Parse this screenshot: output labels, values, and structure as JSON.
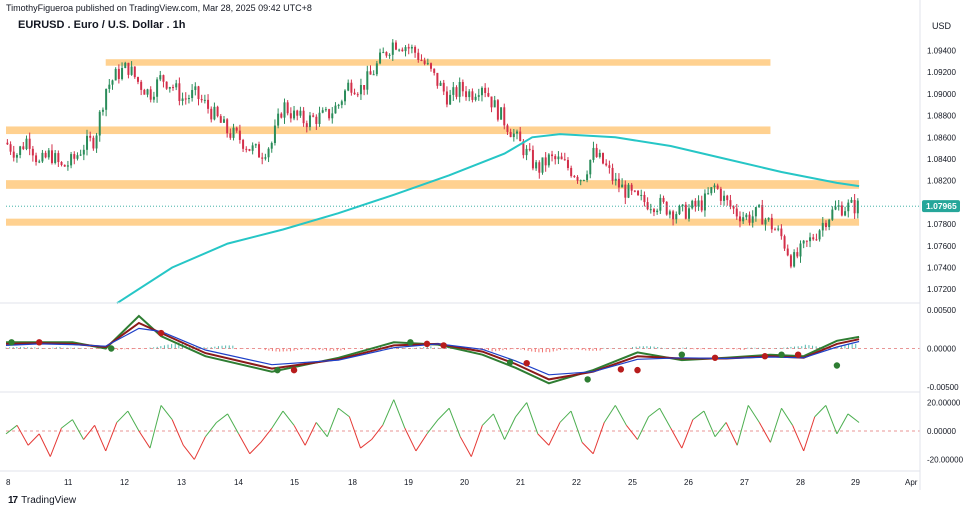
{
  "header": {
    "publish_line": "TimothyFigueroa published on TradingView.com, Mar 28, 2025 09:42 UTC+8",
    "symbol_line": "EURUSD . Euro / U.S. Dollar . 1h",
    "currency": "USD"
  },
  "footer": {
    "logo_text": "17",
    "brand": "TradingView"
  },
  "chart_data": [
    {
      "type": "candlestick",
      "title": "EURUSD . Euro / U.S. Dollar . 1h",
      "ylim": [
        1.071,
        1.097
      ],
      "y_ticks": [
        "1.09400",
        "1.09200",
        "1.09000",
        "1.08800",
        "1.08600",
        "1.08400",
        "1.08200",
        "1.07800",
        "1.07600",
        "1.07400",
        "1.07200"
      ],
      "last_price": "1.07965",
      "x_ticks": [
        "8",
        "11",
        "12",
        "13",
        "14",
        "15",
        "18",
        "19",
        "20",
        "21",
        "22",
        "25",
        "26",
        "27",
        "28",
        "29",
        "Apr"
      ],
      "close_path": [
        [
          0,
          1.0855
        ],
        [
          4,
          1.0845
        ],
        [
          8,
          1.086
        ],
        [
          12,
          1.0835
        ],
        [
          16,
          1.0845
        ],
        [
          20,
          1.0832
        ],
        [
          24,
          1.0838
        ],
        [
          28,
          1.0852
        ],
        [
          32,
          1.0858
        ],
        [
          36,
          1.0905
        ],
        [
          40,
          1.0918
        ],
        [
          44,
          1.0925
        ],
        [
          48,
          1.091
        ],
        [
          52,
          1.09
        ],
        [
          56,
          1.0915
        ],
        [
          60,
          1.0908
        ],
        [
          64,
          1.0895
        ],
        [
          68,
          1.09
        ],
        [
          72,
          1.089
        ],
        [
          76,
          1.0878
        ],
        [
          80,
          1.0865
        ],
        [
          84,
          1.086
        ],
        [
          88,
          1.085
        ],
        [
          92,
          1.0845
        ],
        [
          96,
          1.0855
        ],
        [
          100,
          1.089
        ],
        [
          104,
          1.088
        ],
        [
          108,
          1.0875
        ],
        [
          112,
          1.0878
        ],
        [
          116,
          1.088
        ],
        [
          120,
          1.089
        ],
        [
          124,
          1.091
        ],
        [
          128,
          1.0905
        ],
        [
          132,
          1.0918
        ],
        [
          136,
          1.0935
        ],
        [
          140,
          1.0948
        ],
        [
          144,
          1.0945
        ],
        [
          148,
          1.0938
        ],
        [
          152,
          1.0925
        ],
        [
          156,
          1.091
        ],
        [
          160,
          1.0895
        ],
        [
          164,
          1.0905
        ],
        [
          168,
          1.09
        ],
        [
          172,
          1.091
        ],
        [
          176,
          1.089
        ],
        [
          180,
          1.0875
        ],
        [
          184,
          1.086
        ],
        [
          188,
          1.0845
        ],
        [
          192,
          1.083
        ],
        [
          196,
          1.084
        ],
        [
          200,
          1.0838
        ],
        [
          204,
          1.083
        ],
        [
          208,
          1.0822
        ],
        [
          212,
          1.0845
        ],
        [
          216,
          1.0835
        ],
        [
          220,
          1.0818
        ],
        [
          224,
          1.081
        ],
        [
          228,
          1.0802
        ],
        [
          232,
          1.08
        ],
        [
          236,
          1.0798
        ],
        [
          240,
          1.0793
        ],
        [
          244,
          1.079
        ],
        [
          248,
          1.0795
        ],
        [
          252,
          1.08
        ],
        [
          256,
          1.0815
        ],
        [
          260,
          1.08
        ],
        [
          264,
          1.079
        ],
        [
          268,
          1.0786
        ],
        [
          272,
          1.079
        ],
        [
          276,
          1.078
        ],
        [
          280,
          1.0768
        ],
        [
          284,
          1.0745
        ],
        [
          288,
          1.0758
        ],
        [
          292,
          1.077
        ],
        [
          296,
          1.0785
        ],
        [
          300,
          1.0795
        ],
        [
          304,
          1.0796
        ],
        [
          308,
          1.07965
        ]
      ],
      "ma_path": [
        [
          40,
          1.0707
        ],
        [
          60,
          1.074
        ],
        [
          80,
          1.0762
        ],
        [
          100,
          1.0775
        ],
        [
          120,
          1.079
        ],
        [
          140,
          1.0807
        ],
        [
          160,
          1.0825
        ],
        [
          180,
          1.0845
        ],
        [
          190,
          1.086
        ],
        [
          200,
          1.0863
        ],
        [
          220,
          1.086
        ],
        [
          240,
          1.0852
        ],
        [
          260,
          1.084
        ],
        [
          280,
          1.0828
        ],
        [
          300,
          1.0818
        ],
        [
          308,
          1.0815
        ]
      ],
      "zones": [
        {
          "y_top": 1.0932,
          "y_bottom": 1.0926,
          "x_start": 36,
          "x_end": 276
        },
        {
          "y_top": 1.087,
          "y_bottom": 1.0863,
          "x_start": 0,
          "x_end": 276
        },
        {
          "y_top": 1.08205,
          "y_bottom": 1.08125,
          "x_start": 0,
          "x_end": 308
        },
        {
          "y_top": 1.0785,
          "y_bottom": 1.07785,
          "x_start": 0,
          "x_end": 308
        }
      ]
    },
    {
      "type": "line",
      "panel": "oscillator",
      "y_ticks": [
        "0.00500",
        "0.00000",
        "-0.00500"
      ],
      "ylim": [
        -0.0055,
        0.0055
      ],
      "series": [
        {
          "color": "#2e7d32",
          "values": [
            [
              0,
              0.0008
            ],
            [
              12,
              0.0008
            ],
            [
              24,
              0.0008
            ],
            [
              36,
              0.0
            ],
            [
              48,
              0.0042
            ],
            [
              56,
              0.0016
            ],
            [
              72,
              -0.001
            ],
            [
              96,
              -0.003
            ],
            [
              120,
              -0.0012
            ],
            [
              140,
              0.0008
            ],
            [
              156,
              0.0005
            ],
            [
              172,
              -0.0008
            ],
            [
              184,
              -0.0025
            ],
            [
              196,
              -0.0045
            ],
            [
              212,
              -0.0028
            ],
            [
              228,
              -0.0005
            ],
            [
              244,
              -0.0015
            ],
            [
              260,
              -0.0012
            ],
            [
              276,
              -0.0008
            ],
            [
              288,
              -0.001
            ],
            [
              300,
              0.001
            ],
            [
              308,
              0.0015
            ]
          ]
        },
        {
          "color": "#8b1a1a",
          "values": [
            [
              0,
              0.0006
            ],
            [
              12,
              0.0007
            ],
            [
              24,
              0.0006
            ],
            [
              36,
              0.0002
            ],
            [
              48,
              0.0033
            ],
            [
              56,
              0.002
            ],
            [
              72,
              -0.0006
            ],
            [
              96,
              -0.0026
            ],
            [
              120,
              -0.0014
            ],
            [
              140,
              0.0004
            ],
            [
              156,
              0.0006
            ],
            [
              172,
              -0.0004
            ],
            [
              184,
              -0.002
            ],
            [
              196,
              -0.004
            ],
            [
              212,
              -0.003
            ],
            [
              228,
              -0.001
            ],
            [
              244,
              -0.0013
            ],
            [
              260,
              -0.0013
            ],
            [
              276,
              -0.001
            ],
            [
              288,
              -0.0012
            ],
            [
              300,
              0.0006
            ],
            [
              308,
              0.0012
            ]
          ]
        },
        {
          "color": "#1e40c8",
          "values": [
            [
              0,
              0.0004
            ],
            [
              12,
              0.0006
            ],
            [
              24,
              0.0005
            ],
            [
              36,
              0.0003
            ],
            [
              48,
              0.0026
            ],
            [
              56,
              0.0022
            ],
            [
              72,
              -0.0002
            ],
            [
              96,
              -0.0021
            ],
            [
              120,
              -0.0015
            ],
            [
              140,
              0.0001
            ],
            [
              156,
              0.0006
            ],
            [
              172,
              -0.0001
            ],
            [
              184,
              -0.0016
            ],
            [
              196,
              -0.0034
            ],
            [
              212,
              -0.003
            ],
            [
              228,
              -0.0014
            ],
            [
              244,
              -0.0012
            ],
            [
              260,
              -0.0013
            ],
            [
              276,
              -0.0011
            ],
            [
              288,
              -0.0012
            ],
            [
              300,
              0.0002
            ],
            [
              308,
              0.0009
            ]
          ]
        }
      ],
      "histogram": [
        0.0002,
        0.0003,
        0.0001,
        -0.0002,
        -0.0001,
        0.0006,
        0.0008,
        0.0004,
        -0.0001,
        -0.0004,
        -0.0005,
        -0.0003,
        -0.0001,
        0.0002,
        0.0003,
        0.0001,
        -0.0002,
        -0.0004,
        -0.0005,
        -0.0006,
        -0.0003,
        0.0001,
        0.0003,
        0.0002,
        -0.0001,
        -0.0002,
        0.0001,
        0.0003,
        0.0005,
        0.0006
      ],
      "signal_points": [
        {
          "x": 2,
          "y": 0.0008,
          "color": "#2e7d32"
        },
        {
          "x": 12,
          "y": 0.0008,
          "color": "#b71c1c"
        },
        {
          "x": 38,
          "y": 0.0,
          "color": "#2e7d32"
        },
        {
          "x": 56,
          "y": 0.002,
          "color": "#b71c1c"
        },
        {
          "x": 98,
          "y": -0.0028,
          "color": "#2e7d32"
        },
        {
          "x": 104,
          "y": -0.0028,
          "color": "#b71c1c"
        },
        {
          "x": 146,
          "y": 0.0008,
          "color": "#2e7d32"
        },
        {
          "x": 152,
          "y": 0.0006,
          "color": "#b71c1c"
        },
        {
          "x": 158,
          "y": 0.0004,
          "color": "#b71c1c"
        },
        {
          "x": 182,
          "y": -0.0018,
          "color": "#2e7d32"
        },
        {
          "x": 188,
          "y": -0.0019,
          "color": "#b71c1c"
        },
        {
          "x": 210,
          "y": -0.004,
          "color": "#2e7d32"
        },
        {
          "x": 222,
          "y": -0.0027,
          "color": "#b71c1c"
        },
        {
          "x": 228,
          "y": -0.0028,
          "color": "#b71c1c"
        },
        {
          "x": 244,
          "y": -0.0008,
          "color": "#2e7d32"
        },
        {
          "x": 256,
          "y": -0.0012,
          "color": "#b71c1c"
        },
        {
          "x": 274,
          "y": -0.001,
          "color": "#b71c1c"
        },
        {
          "x": 280,
          "y": -0.0008,
          "color": "#2e7d32"
        },
        {
          "x": 286,
          "y": -0.0008,
          "color": "#b71c1c"
        },
        {
          "x": 300,
          "y": -0.0022,
          "color": "#2e7d32"
        }
      ]
    },
    {
      "type": "line",
      "panel": "momentum",
      "y_ticks": [
        "20.00000",
        "0.00000",
        "-20.00000"
      ],
      "ylim": [
        -26,
        26
      ],
      "values": [
        -2,
        4,
        -10,
        -2,
        -18,
        2,
        8,
        -6,
        4,
        -14,
        6,
        14,
        0,
        -12,
        18,
        8,
        -10,
        -20,
        -4,
        6,
        12,
        -2,
        -16,
        -8,
        2,
        14,
        4,
        -10,
        6,
        -4,
        16,
        10,
        -12,
        -6,
        4,
        22,
        2,
        -14,
        -2,
        8,
        16,
        -4,
        -18,
        4,
        12,
        -6,
        10,
        20,
        -2,
        -10,
        6,
        14,
        -8,
        -16,
        6,
        18,
        4,
        -6,
        10,
        16,
        2,
        -12,
        8,
        14,
        -4,
        6,
        -10,
        18,
        6,
        -8,
        16,
        4,
        -14,
        10,
        18,
        -2,
        12,
        6
      ],
      "zero_line": 0
    }
  ]
}
